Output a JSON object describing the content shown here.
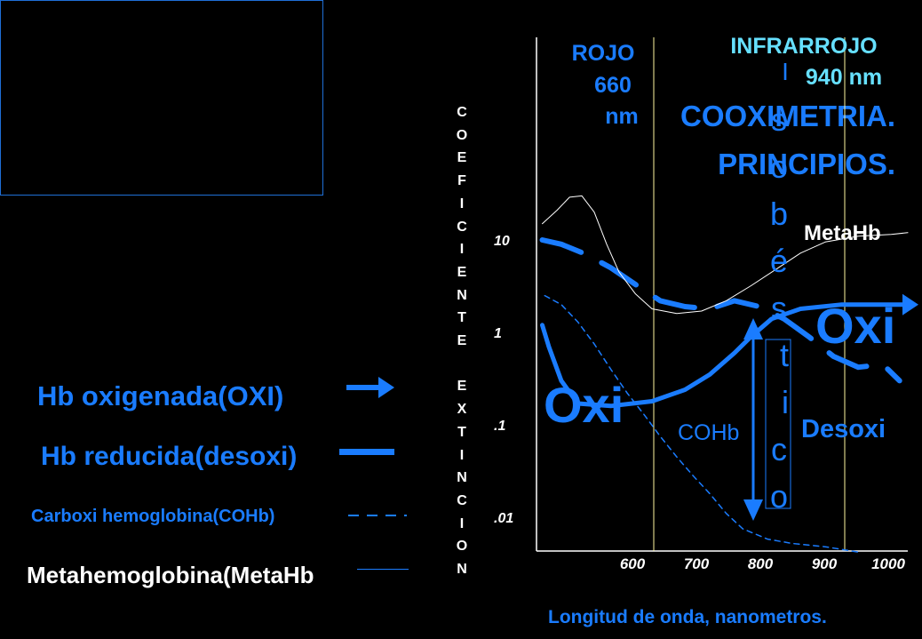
{
  "title": {
    "line1": "COOXIMETRIA.",
    "line2": "PRINCIPIOS."
  },
  "legend": [
    {
      "key": "oxi",
      "label": "Hb oxigenada(OXI)",
      "color": "#1a7cff"
    },
    {
      "key": "desoxi",
      "label": "Hb reducida(desoxi)",
      "color": "#1a7cff"
    },
    {
      "key": "cohb",
      "label": "Carboxi hemoglobina(COHb)",
      "color": "#1a7cff"
    },
    {
      "key": "metahb",
      "label": "Metahemoglobina(MetaHb",
      "color": "#ffffff"
    }
  ],
  "chart_data": {
    "type": "line",
    "ylabel_vertical": [
      "C",
      "O",
      "E",
      "F",
      "I",
      "C",
      "I",
      "E",
      "N",
      "T",
      "E",
      "",
      "E",
      "X",
      "T",
      "I",
      "N",
      "C",
      "I",
      "O",
      "N"
    ],
    "xlabel": "Longitud de onda, nanometros.",
    "x_ticks": [
      "600",
      "700",
      "800",
      "900",
      "1000"
    ],
    "y_ticks": [
      "10",
      "1",
      ".1",
      ".01"
    ],
    "y_scale": "log",
    "xlim": [
      550,
      1000
    ],
    "ylim": [
      0.005,
      40
    ],
    "reference_lines": [
      {
        "label": "ROJO 660 nm",
        "lines": [
          "ROJO",
          "660",
          "nm"
        ],
        "x": 660,
        "color": "#1a7cff"
      },
      {
        "label": "INFRARROJO 940 nm",
        "lines": [
          "INFRARROJO",
          "940 nm"
        ],
        "x": 940,
        "color": "#66e0ff"
      }
    ],
    "isosbestic": {
      "label_chars": [
        "I",
        "s",
        "o",
        "b",
        "é",
        "s",
        "t",
        "i",
        "c",
        "o"
      ],
      "x": 805
    },
    "series": [
      {
        "name": "Oxi",
        "style": "solid-thick-arrow",
        "color": "#1a7cff",
        "x": [
          557,
          565,
          580,
          600,
          640,
          690,
          730,
          760,
          790,
          810,
          835,
          870,
          920,
          970,
          1000
        ],
        "y": [
          1.2,
          0.7,
          0.3,
          0.17,
          0.16,
          0.18,
          0.24,
          0.35,
          0.6,
          0.9,
          1.4,
          1.8,
          2.0,
          2.0,
          2.0
        ]
      },
      {
        "name": "Desoxi",
        "style": "dashed-thick",
        "color": "#1a7cff",
        "x": [
          557,
          580,
          610,
          640,
          670,
          700,
          730,
          760,
          790,
          820,
          850,
          880,
          910,
          940,
          970,
          990
        ],
        "y": [
          10,
          9,
          7,
          5,
          3.3,
          2.2,
          1.9,
          1.8,
          2.2,
          1.9,
          1.4,
          0.9,
          0.55,
          0.42,
          0.45,
          0.3
        ]
      },
      {
        "name": "COHb",
        "style": "dashed-thin",
        "color": "#1a7cff",
        "x": [
          560,
          580,
          600,
          620,
          640,
          660,
          680,
          700,
          720,
          740,
          760,
          780,
          800,
          830,
          860,
          900,
          940
        ],
        "y": [
          2.5,
          2.0,
          1.3,
          0.75,
          0.4,
          0.22,
          0.13,
          0.075,
          0.045,
          0.028,
          0.018,
          0.011,
          0.0075,
          0.0058,
          0.0052,
          0.0048,
          0.0042
        ]
      },
      {
        "name": "MetaHb",
        "style": "thin",
        "color": "#ffffff",
        "x": [
          557,
          575,
          590,
          605,
          620,
          635,
          650,
          670,
          690,
          720,
          750,
          780,
          810,
          840,
          870,
          900,
          940,
          980,
          1000
        ],
        "y": [
          15,
          21,
          29,
          30,
          20,
          9,
          4.5,
          2.6,
          1.8,
          1.6,
          1.7,
          2.2,
          3.2,
          4.8,
          7.2,
          9.5,
          11,
          11.5,
          12
        ]
      }
    ],
    "annotations": [
      {
        "key": "metahb",
        "text": "MetaHb",
        "color": "#ffffff"
      },
      {
        "key": "oxi_right",
        "text": "Oxi",
        "color": "#1a7cff"
      },
      {
        "key": "oxi_left",
        "text": "Oxi",
        "color": "#1a7cff"
      },
      {
        "key": "desoxi",
        "text": "Desoxi",
        "color": "#1a7cff"
      },
      {
        "key": "cohb",
        "text": "COHb",
        "color": "#1a7cff"
      }
    ],
    "colors": {
      "accent": "#1a7cff",
      "cyan": "#66e0ff",
      "text": "#ffffff",
      "ref_line": "#fff7a0"
    }
  }
}
